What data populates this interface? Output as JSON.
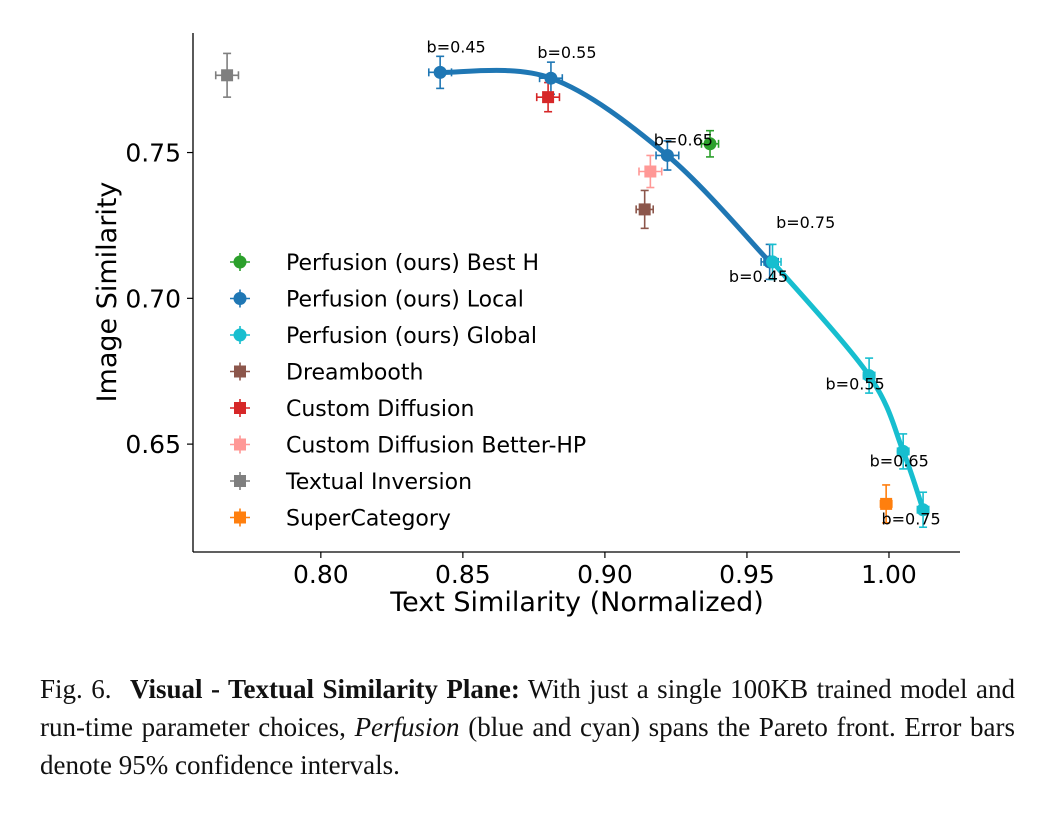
{
  "chart_data": {
    "type": "scatter",
    "xlabel": "Text Similarity (Normalized)",
    "ylabel": "Image Similarity",
    "xlim": [
      0.755,
      1.025
    ],
    "ylim": [
      0.613,
      0.791
    ],
    "x_ticks": [
      0.8,
      0.85,
      0.9,
      0.95,
      1.0
    ],
    "x_tick_labels": [
      "0.80",
      "0.85",
      "0.90",
      "0.95",
      "1.00"
    ],
    "y_ticks": [
      0.65,
      0.7,
      0.75
    ],
    "y_tick_labels": [
      "0.65",
      "0.70",
      "0.75"
    ],
    "legend_position": "center-left",
    "series": [
      {
        "name": "Perfusion (ours) Best H",
        "color": "#2ca02c",
        "marker": "circle",
        "points": [
          {
            "x": 0.937,
            "y": 0.753,
            "xerr": 0.003,
            "yerr": 0.0045
          }
        ]
      },
      {
        "name": "Perfusion (ours) Local",
        "color": "#1f77b4",
        "marker": "circle",
        "curve": true,
        "points": [
          {
            "x": 0.842,
            "y": 0.7775,
            "xerr": 0.004,
            "yerr": 0.0055,
            "label": "b=0.45"
          },
          {
            "x": 0.881,
            "y": 0.7755,
            "xerr": 0.004,
            "yerr": 0.0055,
            "label": "b=0.55"
          },
          {
            "x": 0.922,
            "y": 0.749,
            "xerr": 0.004,
            "yerr": 0.005,
            "label": "b=0.65"
          },
          {
            "x": 0.958,
            "y": 0.7125,
            "xerr": 0.003,
            "yerr": 0.006,
            "label": "b=0.75"
          }
        ]
      },
      {
        "name": "Perfusion (ours) Global",
        "color": "#17becf",
        "marker": "circle",
        "curve": true,
        "points": [
          {
            "x": 0.959,
            "y": 0.7125,
            "xerr": 0.003,
            "yerr": 0.006,
            "label": "b=0.45"
          },
          {
            "x": 0.993,
            "y": 0.6735,
            "xerr": 0.002,
            "yerr": 0.006,
            "label": "b=0.55"
          },
          {
            "x": 1.005,
            "y": 0.6475,
            "xerr": 0.002,
            "yerr": 0.006,
            "label": "b=0.65"
          },
          {
            "x": 1.012,
            "y": 0.6275,
            "xerr": 0.002,
            "yerr": 0.006,
            "label": "b=0.75"
          }
        ]
      },
      {
        "name": "Dreambooth",
        "color": "#8c564b",
        "marker": "square",
        "points": [
          {
            "x": 0.914,
            "y": 0.7305,
            "xerr": 0.003,
            "yerr": 0.0065
          }
        ]
      },
      {
        "name": "Custom Diffusion",
        "color": "#d62728",
        "marker": "square",
        "points": [
          {
            "x": 0.88,
            "y": 0.769,
            "xerr": 0.004,
            "yerr": 0.005
          }
        ]
      },
      {
        "name": "Custom Diffusion Better-HP",
        "color": "#ff9896",
        "marker": "square",
        "points": [
          {
            "x": 0.916,
            "y": 0.7435,
            "xerr": 0.004,
            "yerr": 0.0055
          }
        ]
      },
      {
        "name": "Textual Inversion",
        "color": "#7f7f7f",
        "marker": "square",
        "points": [
          {
            "x": 0.767,
            "y": 0.7765,
            "xerr": 0.004,
            "yerr": 0.0075
          }
        ]
      },
      {
        "name": "SuperCategory",
        "color": "#ff7f0e",
        "marker": "square",
        "points": [
          {
            "x": 0.999,
            "y": 0.6295,
            "xerr": 0.002,
            "yerr": 0.0065
          }
        ]
      }
    ]
  },
  "caption": {
    "label": "Fig. 6.",
    "title": "Visual - Textual Similarity Plane:",
    "text_before": " With just a single 100KB trained model and run-time parameter choices, ",
    "emphasis": "Perfusion",
    "text_after": " (blue and cyan) spans the Pareto front. Error bars denote 95% confidence intervals."
  }
}
